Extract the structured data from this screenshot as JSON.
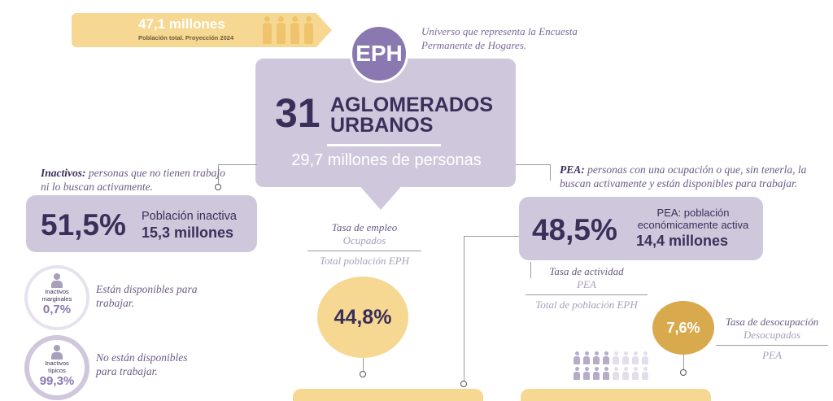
{
  "banner": {
    "total": "47,1 millones",
    "caption": "Población total. Proyección 2024",
    "people_icon": "people-group-icon"
  },
  "center": {
    "badge": "EPH",
    "note": "Universo que representa la Encuesta Permanente de Hogares.",
    "number": "31",
    "title_line1": "AGLOMERADOS",
    "title_line2": "URBANOS",
    "subtitle": "29,7 millones de personas"
  },
  "inactive": {
    "term": "Inactivos:",
    "definition": " personas que no tienen trabajo ni lo buscan activamente.",
    "percent": "51,5%",
    "label": "Población inactiva",
    "amount": "15,3 millones",
    "marginal": {
      "label_line1": "Inactivos",
      "label_line2": "marginales",
      "percent": "0,7%",
      "text": "Están disponibles para trabajar."
    },
    "typical": {
      "label_line1": "Inactivos",
      "label_line2": "típicos",
      "percent": "99,3%",
      "text": "No están disponibles para trabajar."
    }
  },
  "employment": {
    "title": "Tasa de empleo",
    "numerator": "Ocupados",
    "denominator": "Total población EPH",
    "percent": "44,8%"
  },
  "pea": {
    "term": "PEA:",
    "definition": " personas con una ocupación o que, sin tenerla, la buscan activamente y están disponibles para trabajar.",
    "percent": "48,5%",
    "label": "PEA: población económicamente activa",
    "amount": "14,4 millones"
  },
  "activity": {
    "title": "Tasa de actividad",
    "numerator": "PEA",
    "denominator": "Total de población EPH"
  },
  "unemployment": {
    "percent": "7,6%",
    "title": "Tasa de desocupación",
    "numerator": "Desocupados",
    "denominator": "PEA"
  },
  "colors": {
    "purple_dark": "#3b2f5a",
    "purple_mid": "#8a78b0",
    "lavender": "#cfc8dc",
    "yellow": "#f6d892",
    "gold": "#d9a94d"
  }
}
